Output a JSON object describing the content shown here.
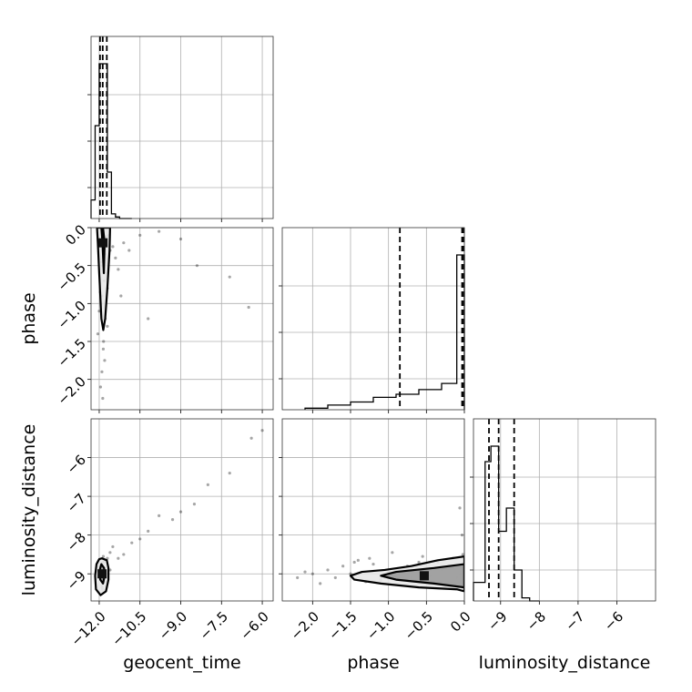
{
  "chart_data": {
    "type": "corner",
    "parameters": [
      "geocent_time",
      "phase",
      "luminosity_distance"
    ],
    "axis_labels": {
      "x": [
        "geocent_time",
        "phase",
        "luminosity_distance"
      ],
      "y": [
        "phase",
        "luminosity_distance"
      ]
    },
    "ranges": {
      "geocent_time": [
        -12.3,
        -5.6
      ],
      "phase": [
        -2.4,
        0.0
      ],
      "luminosity_distance": [
        -9.7,
        -5.0
      ]
    },
    "ticks": {
      "geocent_time": {
        "values": [
          -12.0,
          -10.5,
          -9.0,
          -7.5,
          -6.0
        ],
        "labels": [
          "−12.0",
          "−10.5",
          "−9.0",
          "−7.5",
          "−6.0"
        ]
      },
      "phase": {
        "values": [
          -2.0,
          -1.5,
          -1.0,
          -0.5,
          0.0
        ],
        "labels": [
          "−2.0",
          "−1.5",
          "−1.0",
          "−0.5",
          "0.0"
        ]
      },
      "luminosity_distance": {
        "values": [
          -9,
          -8,
          -7,
          -6
        ],
        "labels": [
          "−9",
          "−8",
          "−7",
          "−6"
        ]
      }
    },
    "histograms": {
      "geocent_time": {
        "bin_edges": [
          -12.3,
          -12.15,
          -12.0,
          -11.85,
          -11.7,
          -11.55,
          -11.4,
          -11.25,
          -11.1,
          -10.95,
          -10.8
        ],
        "counts": [
          0.12,
          0.6,
          1.0,
          1.0,
          0.3,
          0.03,
          0.01,
          0.0,
          0.0,
          0.0
        ],
        "quantiles": [
          -11.97,
          -11.87,
          -11.72
        ]
      },
      "phase": {
        "bin_edges": [
          -2.1,
          -1.8,
          -1.5,
          -1.2,
          -0.9,
          -0.6,
          -0.3,
          -0.1,
          0.0
        ],
        "counts": [
          0.01,
          0.03,
          0.05,
          0.08,
          0.1,
          0.13,
          0.17,
          1.0
        ],
        "quantiles": [
          -0.85,
          -0.03,
          -0.01
        ]
      },
      "luminosity_distance": {
        "bin_edges": [
          -9.7,
          -9.4,
          -9.25,
          -9.05,
          -8.85,
          -8.65,
          -8.45,
          -8.25,
          -8.0
        ],
        "counts": [
          0.12,
          0.9,
          1.0,
          0.45,
          0.6,
          0.2,
          0.02,
          0.0
        ],
        "quantiles": [
          -9.3,
          -9.05,
          -8.65
        ]
      }
    },
    "scatter": {
      "geocent_time_vs_phase": {
        "x": [
          -11.9,
          -11.95,
          -11.85,
          -11.8,
          -11.9,
          -12.0,
          -11.7,
          -11.6,
          -11.75,
          -11.85,
          -11.9,
          -11.95,
          -11.8,
          -11.7,
          -12.05,
          -11.88,
          -11.92,
          -11.78,
          -11.82,
          -11.65,
          -11.5,
          -11.4,
          -11.3,
          -11.2,
          -11.1,
          -10.9,
          -10.5,
          -10.2,
          -9.8,
          -9.0,
          -8.4,
          -7.2,
          -6.5,
          -11.87,
          -11.93,
          -11.79,
          -11.84,
          -11.91,
          -11.96,
          -11.73
        ],
        "y": [
          -0.05,
          -0.2,
          -0.4,
          -0.6,
          -0.9,
          -1.1,
          -1.3,
          -0.3,
          -0.15,
          -1.6,
          -1.9,
          -2.1,
          -1.75,
          -0.8,
          -1.4,
          -0.5,
          -1.0,
          -1.2,
          -0.7,
          -0.1,
          -0.25,
          -0.4,
          -0.55,
          -0.9,
          -0.2,
          -0.3,
          -0.1,
          -1.2,
          -0.05,
          -0.15,
          -0.5,
          -0.65,
          -1.05,
          -2.25,
          -0.02,
          -0.35,
          -1.5,
          -0.45,
          -0.85,
          -0.12
        ]
      },
      "geocent_time_vs_luminosity_distance": {
        "x": [
          -11.9,
          -11.95,
          -11.85,
          -11.8,
          -11.9,
          -12.0,
          -11.7,
          -11.6,
          -11.75,
          -11.85,
          -11.9,
          -11.95,
          -11.8,
          -11.7,
          -12.05,
          -11.88,
          -11.6,
          -11.5,
          -11.3,
          -11.1,
          -10.8,
          -10.5,
          -10.2,
          -9.8,
          -9.3,
          -9.0,
          -8.5,
          -8.0,
          -7.2,
          -6.4,
          -6.0
        ],
        "y": [
          -9.1,
          -8.9,
          -8.7,
          -9.2,
          -9.35,
          -8.8,
          -8.6,
          -8.9,
          -9.0,
          -8.55,
          -9.3,
          -8.75,
          -8.65,
          -9.1,
          -8.95,
          -9.4,
          -8.45,
          -8.3,
          -8.6,
          -8.5,
          -8.2,
          -8.1,
          -7.9,
          -7.5,
          -7.6,
          -7.4,
          -7.2,
          -6.7,
          -6.4,
          -5.5,
          -5.3
        ]
      },
      "phase_vs_luminosity_distance": {
        "x": [
          -0.05,
          -0.1,
          -0.2,
          -0.3,
          -0.4,
          -0.5,
          -0.6,
          -0.7,
          -0.8,
          -0.9,
          -1.0,
          -1.1,
          -1.2,
          -1.3,
          -1.4,
          -1.5,
          -1.6,
          -1.7,
          -1.8,
          -1.9,
          -2.0,
          -2.1,
          -2.2,
          -0.15,
          -0.25,
          -0.35,
          -0.45,
          -0.55,
          -0.65,
          -0.75,
          -0.02,
          -0.08,
          -1.25,
          -1.45,
          -0.95,
          -0.03,
          -0.06
        ],
        "y": [
          -9.0,
          -9.1,
          -8.8,
          -8.9,
          -9.2,
          -9.0,
          -8.7,
          -9.1,
          -8.85,
          -9.05,
          -8.95,
          -9.15,
          -8.75,
          -9.2,
          -8.65,
          -9.0,
          -8.8,
          -9.1,
          -8.9,
          -9.25,
          -9.0,
          -8.95,
          -9.1,
          -8.6,
          -9.3,
          -8.7,
          -9.05,
          -8.55,
          -9.2,
          -8.8,
          -8.5,
          -9.35,
          -8.6,
          -8.7,
          -8.45,
          -8.0,
          -7.3
        ]
      }
    },
    "contours": {
      "geocent_time_vs_phase": [
        {
          "level": "inner",
          "points": [
            [
              -11.86,
              0.0
            ],
            [
              -11.8,
              -0.2
            ],
            [
              -11.83,
              -0.6
            ],
            [
              -11.88,
              -0.2
            ],
            [
              -11.92,
              0.0
            ]
          ]
        },
        {
          "level": "outer",
          "points": [
            [
              -11.6,
              0.0
            ],
            [
              -11.62,
              -0.3
            ],
            [
              -11.7,
              -0.8
            ],
            [
              -11.78,
              -1.2
            ],
            [
              -11.85,
              -1.35
            ],
            [
              -11.92,
              -1.2
            ],
            [
              -12.0,
              -0.6
            ],
            [
              -12.05,
              -0.2
            ],
            [
              -12.08,
              0.0
            ]
          ]
        }
      ],
      "geocent_time_vs_luminosity_distance": [
        {
          "level": "inner",
          "points": [
            [
              -11.92,
              -8.75
            ],
            [
              -11.82,
              -8.85
            ],
            [
              -11.8,
              -9.05
            ],
            [
              -11.86,
              -9.25
            ],
            [
              -11.96,
              -9.15
            ],
            [
              -12.0,
              -8.95
            ]
          ]
        },
        {
          "level": "outer",
          "points": [
            [
              -11.9,
              -8.6
            ],
            [
              -11.72,
              -8.65
            ],
            [
              -11.66,
              -8.85
            ],
            [
              -11.66,
              -9.15
            ],
            [
              -11.75,
              -9.45
            ],
            [
              -11.95,
              -9.55
            ],
            [
              -12.12,
              -9.4
            ],
            [
              -12.15,
              -9.05
            ],
            [
              -12.1,
              -8.75
            ],
            [
              -12.0,
              -8.62
            ]
          ]
        }
      ],
      "phase_vs_luminosity_distance": [
        {
          "level": "inner",
          "points": [
            [
              0.0,
              -8.75
            ],
            [
              -0.4,
              -8.85
            ],
            [
              -0.9,
              -8.95
            ],
            [
              -1.1,
              -9.05
            ],
            [
              -0.9,
              -9.15
            ],
            [
              -0.4,
              -9.25
            ],
            [
              0.0,
              -9.35
            ]
          ]
        },
        {
          "level": "outer",
          "points": [
            [
              0.0,
              -8.55
            ],
            [
              -0.35,
              -8.65
            ],
            [
              -0.7,
              -8.8
            ],
            [
              -1.05,
              -8.9
            ],
            [
              -1.35,
              -8.95
            ],
            [
              -1.5,
              -9.05
            ],
            [
              -1.45,
              -9.15
            ],
            [
              -1.1,
              -9.25
            ],
            [
              -0.6,
              -9.35
            ],
            [
              -0.1,
              -9.4
            ],
            [
              0.0,
              -9.45
            ]
          ]
        }
      ]
    },
    "grid": true
  }
}
